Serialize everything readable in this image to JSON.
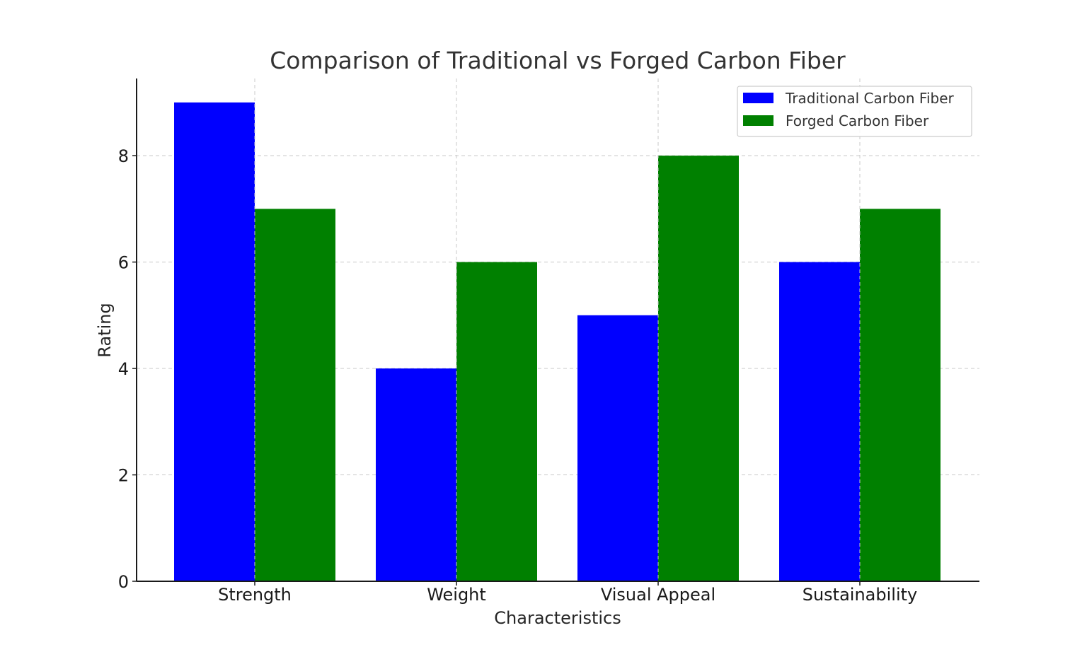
{
  "chart_data": {
    "type": "bar",
    "title": "Comparison of Traditional vs Forged Carbon Fiber",
    "xlabel": "Characteristics",
    "ylabel": "Rating",
    "categories": [
      "Strength",
      "Weight",
      "Visual Appeal",
      "Sustainability"
    ],
    "series": [
      {
        "name": "Traditional Carbon Fiber",
        "color": "#0000ff",
        "values": [
          9,
          4,
          5,
          6
        ]
      },
      {
        "name": "Forged Carbon Fiber",
        "color": "#008000",
        "values": [
          7,
          6,
          8,
          7
        ]
      }
    ],
    "ylim": [
      0,
      9.45
    ],
    "yticks": [
      0,
      2,
      4,
      6,
      8
    ],
    "grid": true,
    "legend_position": "top-right"
  }
}
